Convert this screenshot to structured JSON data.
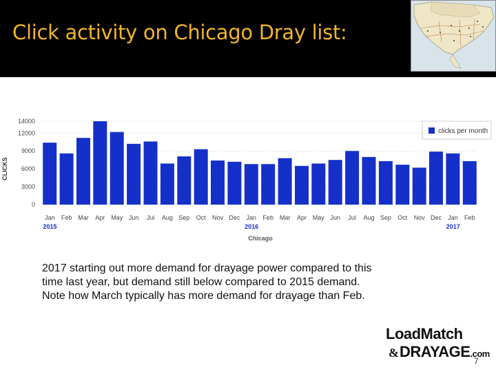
{
  "slide": {
    "title": "Click activity on Chicago Dray list:",
    "page_number": "7",
    "body_lines": [
      "2017 starting out more demand for drayage power compared to this",
      "time last year, but demand still below compared to 2015 demand.",
      "Note how March typically has more demand for drayage than Feb."
    ],
    "logo": {
      "line1": "LoadMatch",
      "amp": "&",
      "line2": "DRAYAGE",
      "suffix": ".com"
    },
    "colors": {
      "header_bg": "#000000",
      "title": "#f1b52a",
      "bar": "#1530c8"
    },
    "map_icon": "north-america-map-thumbnail"
  },
  "chart_data": {
    "type": "bar",
    "xlabel": "Chicago",
    "ylabel": "CLICKS",
    "ylim": [
      0,
      14000
    ],
    "yticks": [
      0,
      3000,
      6000,
      9000,
      12000,
      14000
    ],
    "grid": true,
    "legend_position": "top-right",
    "categories": [
      "Jan",
      "Feb",
      "Mar",
      "Apr",
      "May",
      "Jun",
      "Jul",
      "Aug",
      "Sep",
      "Oct",
      "Nov",
      "Dec",
      "Jan",
      "Feb",
      "Mar",
      "Apr",
      "May",
      "Jun",
      "Jul",
      "Aug",
      "Sep",
      "Oct",
      "Nov",
      "Dec",
      "Jan",
      "Feb"
    ],
    "year_labels": [
      {
        "index": 0,
        "label": "2015"
      },
      {
        "index": 12,
        "label": "2016"
      },
      {
        "index": 24,
        "label": "2017"
      }
    ],
    "series": [
      {
        "name": "clicks per month",
        "values": [
          10400,
          8600,
          11200,
          14000,
          12200,
          10200,
          10600,
          6900,
          8100,
          9300,
          7400,
          7200,
          6800,
          6800,
          7800,
          6500,
          6900,
          7500,
          9000,
          8000,
          7300,
          6700,
          6200,
          8900,
          8600,
          7300
        ]
      }
    ]
  }
}
